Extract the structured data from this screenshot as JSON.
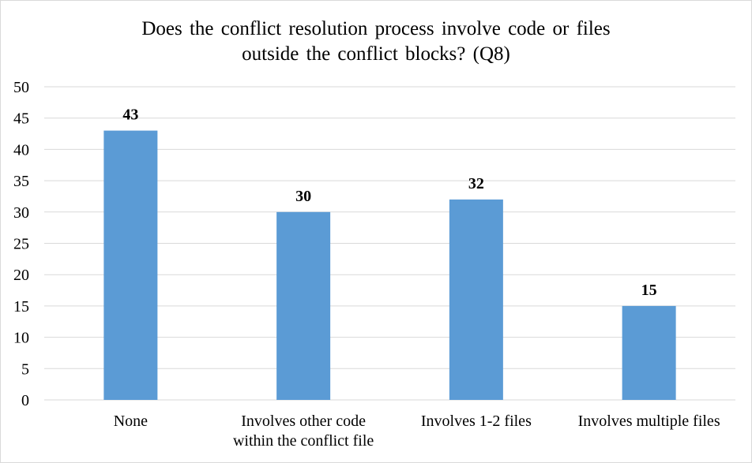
{
  "chart_data": {
    "type": "bar",
    "title_lines": [
      "Does the conflict resolution process involve code or files",
      "outside the conflict blocks? (Q8)"
    ],
    "categories": [
      [
        "None"
      ],
      [
        "Involves other code",
        "within the conflict file"
      ],
      [
        "Involves 1-2 files"
      ],
      [
        "Involves multiple files"
      ]
    ],
    "values": [
      43,
      30,
      32,
      15
    ],
    "data_labels": [
      "43",
      "30",
      "32",
      "15"
    ],
    "ylim": [
      0,
      50
    ],
    "yticks": [
      0,
      5,
      10,
      15,
      20,
      25,
      30,
      35,
      40,
      45,
      50
    ],
    "grid": true,
    "legend": "none",
    "bar_color": "#5b9bd5",
    "grid_color": "#d9d9d9"
  }
}
